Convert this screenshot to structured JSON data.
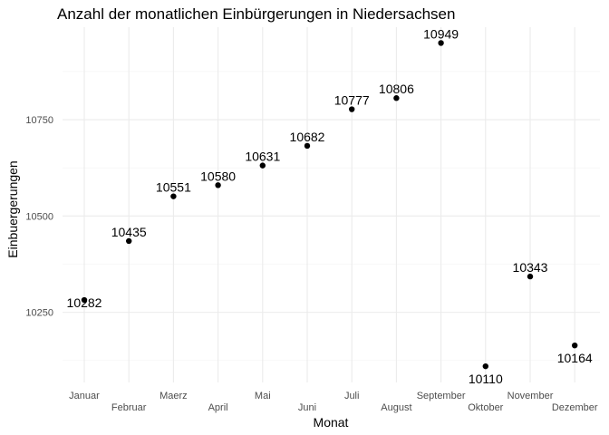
{
  "chart_data": {
    "type": "scatter",
    "title": "Anzahl der monatlichen Einbürgerungen in Niedersachsen",
    "xlabel": "Monat",
    "ylabel": "Einbuergerungen",
    "categories": [
      "Januar",
      "Februar",
      "Maerz",
      "April",
      "Mai",
      "Juni",
      "Juli",
      "August",
      "September",
      "Oktober",
      "November",
      "Dezember"
    ],
    "values": [
      10282,
      10435,
      10551,
      10580,
      10631,
      10682,
      10777,
      10806,
      10949,
      10110,
      10343,
      10164
    ],
    "data_labels": [
      "10282",
      "10435",
      "10551",
      "10580",
      "10631",
      "10682",
      "10777",
      "10806",
      "10949",
      "10110",
      "10343",
      "10164"
    ],
    "y_ticks": [
      10250,
      10500,
      10750
    ],
    "y_tick_labels": [
      "10250",
      "10500",
      "10750"
    ],
    "ylim": [
      10068,
      10990
    ],
    "grid": true,
    "legend": "none",
    "point_color": "#000000"
  }
}
